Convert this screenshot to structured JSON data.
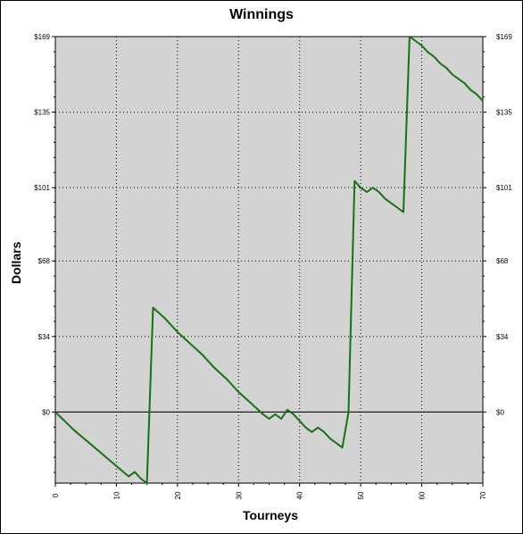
{
  "chart_data": {
    "type": "line",
    "title": "Winnings",
    "xlabel": "Tourneys",
    "ylabel": "Dollars",
    "xlim": [
      0,
      70
    ],
    "ylim": [
      -32,
      169
    ],
    "x_ticks": [
      0,
      10,
      20,
      30,
      40,
      50,
      60,
      70
    ],
    "y_ticks": [
      0,
      34,
      68,
      101,
      135,
      169
    ],
    "y_tick_labels": [
      "$0",
      "$34",
      "$68",
      "$101",
      "$135",
      "$169"
    ],
    "grid": true,
    "series": [
      {
        "color": "#1a6e1a",
        "x": [
          0,
          3,
          6,
          9,
          12,
          13,
          14,
          15,
          16,
          18,
          20,
          22,
          24,
          26,
          28,
          30,
          32,
          34,
          35,
          36,
          37,
          38,
          39,
          40,
          41,
          42,
          43,
          44,
          45,
          46,
          47,
          48,
          49,
          50,
          51,
          52,
          53,
          54,
          55,
          56,
          57,
          58,
          59,
          60,
          61,
          62,
          63,
          64,
          65,
          66,
          67,
          68,
          69,
          70
        ],
        "y": [
          0,
          -8,
          -15,
          -22,
          -29,
          -27,
          -30,
          -32,
          47,
          42,
          36,
          31,
          26,
          20,
          15,
          9,
          4,
          -1,
          -3,
          -1,
          -3,
          1,
          -1,
          -4,
          -7,
          -9,
          -7,
          -9,
          -12,
          -14,
          -16,
          0,
          104,
          101,
          99,
          101,
          99,
          96,
          94,
          92,
          90,
          169,
          167,
          165,
          162,
          160,
          157,
          155,
          152,
          150,
          148,
          145,
          143,
          140
        ]
      }
    ]
  }
}
